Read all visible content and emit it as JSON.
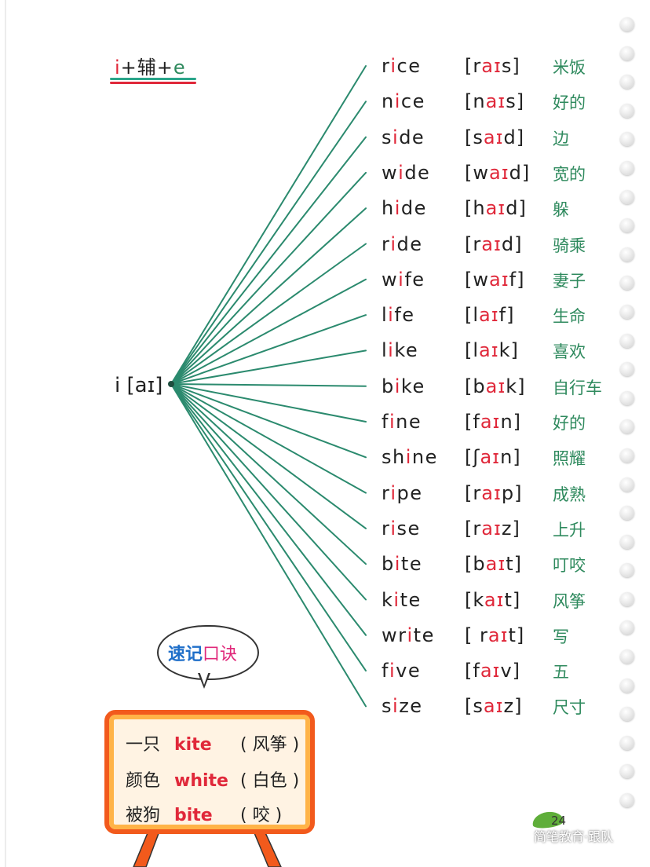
{
  "title": {
    "part_i": "i",
    "part_mid": "+辅+",
    "part_e": "e"
  },
  "root": "i [aɪ]",
  "words": [
    {
      "pre": "r",
      "hl": "i",
      "post": "ce",
      "ipa_pre": "[r",
      "ipa_hl": "aɪ",
      "ipa_post": "s]",
      "meaning": "米饭"
    },
    {
      "pre": "n",
      "hl": "i",
      "post": "ce",
      "ipa_pre": "[n",
      "ipa_hl": "aɪ",
      "ipa_post": "s]",
      "meaning": "好的"
    },
    {
      "pre": "s",
      "hl": "i",
      "post": "de",
      "ipa_pre": "[s",
      "ipa_hl": "aɪ",
      "ipa_post": "d]",
      "meaning": "边"
    },
    {
      "pre": "w",
      "hl": "i",
      "post": "de",
      "ipa_pre": "[w",
      "ipa_hl": "aɪ",
      "ipa_post": "d]",
      "meaning": "宽的"
    },
    {
      "pre": "h",
      "hl": "i",
      "post": "de",
      "ipa_pre": "[h",
      "ipa_hl": "aɪ",
      "ipa_post": "d]",
      "meaning": "躲"
    },
    {
      "pre": "r",
      "hl": "i",
      "post": "de",
      "ipa_pre": "[r",
      "ipa_hl": "aɪ",
      "ipa_post": "d]",
      "meaning": "骑乘"
    },
    {
      "pre": "w",
      "hl": "i",
      "post": "fe",
      "ipa_pre": "[w",
      "ipa_hl": "aɪ",
      "ipa_post": "f]",
      "meaning": "妻子"
    },
    {
      "pre": "l",
      "hl": "i",
      "post": "fe",
      "ipa_pre": "[l",
      "ipa_hl": "aɪ",
      "ipa_post": "f]",
      "meaning": "生命"
    },
    {
      "pre": "l",
      "hl": "i",
      "post": "ke",
      "ipa_pre": "[l",
      "ipa_hl": "aɪ",
      "ipa_post": "k]",
      "meaning": "喜欢"
    },
    {
      "pre": "b",
      "hl": "i",
      "post": "ke",
      "ipa_pre": "[b",
      "ipa_hl": "aɪ",
      "ipa_post": "k]",
      "meaning": "自行车"
    },
    {
      "pre": "f",
      "hl": "i",
      "post": "ne",
      "ipa_pre": "[f",
      "ipa_hl": "aɪ",
      "ipa_post": "n]",
      "meaning": "好的"
    },
    {
      "pre": "sh",
      "hl": "i",
      "post": "ne",
      "ipa_pre": "[ʃ",
      "ipa_hl": "aɪ",
      "ipa_post": "n]",
      "meaning": "照耀"
    },
    {
      "pre": "r",
      "hl": "i",
      "post": "pe",
      "ipa_pre": "[r",
      "ipa_hl": "aɪ",
      "ipa_post": "p]",
      "meaning": "成熟"
    },
    {
      "pre": "r",
      "hl": "i",
      "post": "se",
      "ipa_pre": "[r",
      "ipa_hl": "aɪ",
      "ipa_post": "z]",
      "meaning": "上升"
    },
    {
      "pre": "b",
      "hl": "i",
      "post": "te",
      "ipa_pre": "[b",
      "ipa_hl": "aɪ",
      "ipa_post": "t]",
      "meaning": "叮咬"
    },
    {
      "pre": "k",
      "hl": "i",
      "post": "te",
      "ipa_pre": "[k",
      "ipa_hl": "aɪ",
      "ipa_post": "t]",
      "meaning": "风筝"
    },
    {
      "pre": "wr",
      "hl": "i",
      "post": "te",
      "ipa_pre": "[ r",
      "ipa_hl": "aɪ",
      "ipa_post": "t]",
      "meaning": "写"
    },
    {
      "pre": "f",
      "hl": "i",
      "post": "ve",
      "ipa_pre": "[f",
      "ipa_hl": "aɪ",
      "ipa_post": "v]",
      "meaning": "五"
    },
    {
      "pre": "s",
      "hl": "i",
      "post": "ze",
      "ipa_pre": "[s",
      "ipa_hl": "aɪ",
      "ipa_post": "z]",
      "meaning": "尺寸"
    }
  ],
  "bubble": {
    "part1": "速记",
    "part2": "口诀"
  },
  "mnemonic": [
    {
      "cn": "一只",
      "en": "kite",
      "paren": "( 风筝 )"
    },
    {
      "cn": "颜色",
      "en": "white",
      "paren": "( 白色 )"
    },
    {
      "cn": "被狗",
      "en": "bite",
      "paren": "( 咬 )"
    }
  ],
  "page_number": "24",
  "watermark": "简笔教育·跟队",
  "colors": {
    "highlight_red": "#e0283a",
    "meaning_green": "#2f8a5e",
    "line_green": "#2b8a6e",
    "board_orange": "#f25a1c",
    "bubble_blue": "#1f6fc9",
    "bubble_pink": "#e0287a"
  }
}
